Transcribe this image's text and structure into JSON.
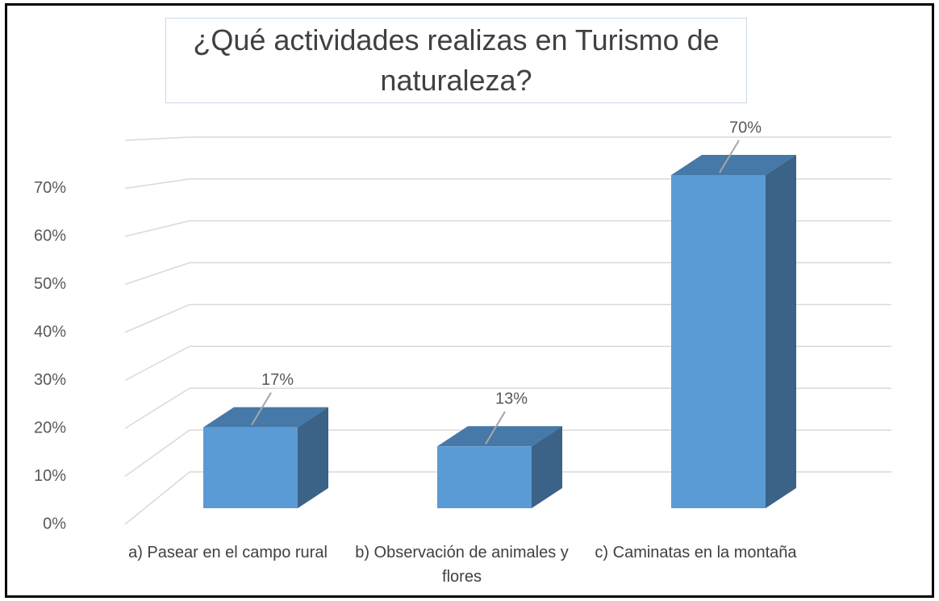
{
  "chart_data": {
    "type": "bar3d",
    "title": "¿Qué actividades realizas en Turismo de naturaleza?",
    "categories": [
      "a) Pasear en el campo rural",
      "b) Observación de animales y flores",
      "c) Caminatas en la montaña"
    ],
    "values": [
      17,
      13,
      70
    ],
    "value_labels": [
      "17%",
      "13%",
      "70%"
    ],
    "color": "#5b9bd5",
    "ylim": [
      0,
      80
    ],
    "yticks": [
      {
        "value": 0,
        "label": "0%"
      },
      {
        "value": 10,
        "label": "10%"
      },
      {
        "value": 20,
        "label": "20%"
      },
      {
        "value": 30,
        "label": "30%"
      },
      {
        "value": 40,
        "label": "40%"
      },
      {
        "value": 50,
        "label": "50%"
      },
      {
        "value": 60,
        "label": "60%"
      },
      {
        "value": 70,
        "label": "70%"
      }
    ],
    "grid": true
  }
}
